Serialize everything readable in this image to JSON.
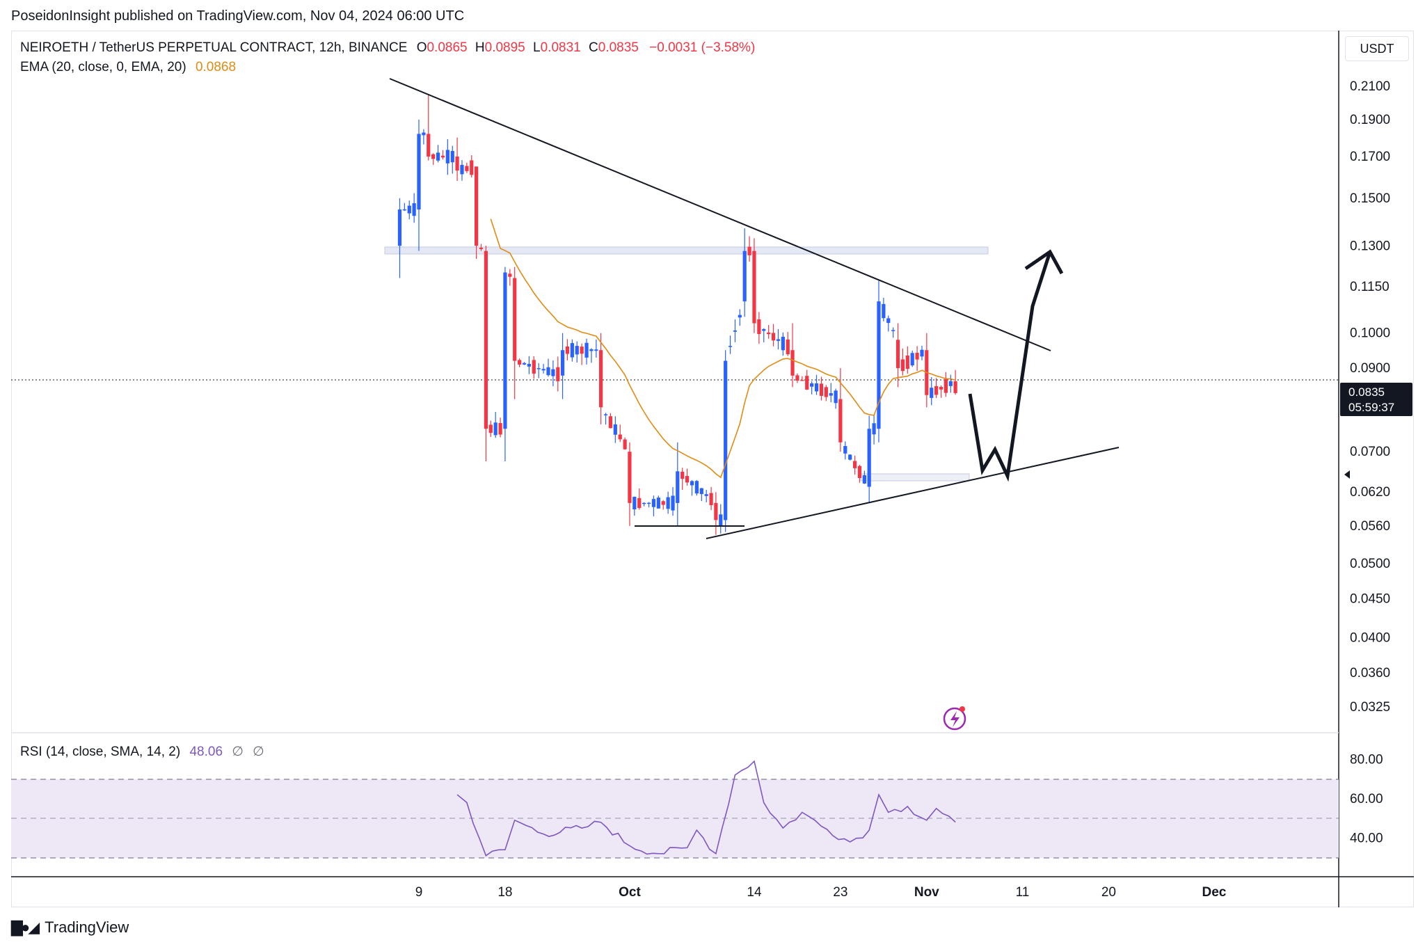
{
  "header": {
    "published": "PoseidonInsight published on TradingView.com, Nov 04, 2024 06:00 UTC"
  },
  "legend": {
    "symbol": "NEIROETH / TetherUS PERPETUAL CONTRACT, 12h, BINANCE",
    "o_label": "O",
    "o_value": "0.0865",
    "h_label": "H",
    "h_value": "0.0895",
    "l_label": "L",
    "l_value": "0.0831",
    "c_label": "C",
    "c_value": "0.0835",
    "change": "−0.0031 (−3.58%)",
    "ema_label": "EMA (20, close, 0, EMA, 20)",
    "ema_value": "0.0868"
  },
  "rsi_legend": {
    "label": "RSI (14, close, SMA, 14, 2)",
    "value": "48.06",
    "na1": "∅",
    "na2": "∅"
  },
  "price_scale": {
    "unit": "USDT",
    "current_price": "0.0835",
    "countdown": "05:59:37"
  },
  "branding": {
    "logo_text": "TradingView"
  },
  "colors": {
    "up": "#2962ff",
    "down": "#f23645",
    "ema": "#e08b13",
    "rsi": "#7e57c2",
    "rsi_band": "#ede7f6"
  },
  "chart_data": [
    {
      "type": "candlestick",
      "title": "NEIROETH / TetherUS PERPETUAL CONTRACT, 12h, BINANCE",
      "scale": "log",
      "y_ticks": [
        "0.2100",
        "0.1900",
        "0.1700",
        "0.1500",
        "0.1300",
        "0.1150",
        "0.1000",
        "0.0900",
        "0.0700",
        "0.0620",
        "0.0560",
        "0.0500",
        "0.0450",
        "0.0400",
        "0.0360",
        "0.0325"
      ],
      "x_ticks": [
        "9",
        "18",
        "Oct",
        "14",
        "23",
        "Nov",
        "11",
        "20",
        "Dec"
      ],
      "ylim": [
        0.03,
        0.225
      ],
      "ohlc_approx": [
        {
          "date": "2024-09-07",
          "open": 0.13,
          "high": 0.15,
          "low": 0.118,
          "close": 0.145
        },
        {
          "date": "2024-09-09",
          "open": 0.145,
          "high": 0.19,
          "low": 0.128,
          "close": 0.182
        },
        {
          "date": "2024-09-10",
          "open": 0.182,
          "high": 0.205,
          "low": 0.168,
          "close": 0.17
        },
        {
          "date": "2024-09-13",
          "open": 0.17,
          "high": 0.18,
          "low": 0.158,
          "close": 0.163
        },
        {
          "date": "2024-09-15",
          "open": 0.165,
          "high": 0.155,
          "low": 0.125,
          "close": 0.13
        },
        {
          "date": "2024-09-16",
          "open": 0.128,
          "high": 0.13,
          "low": 0.068,
          "close": 0.075
        },
        {
          "date": "2024-09-18",
          "open": 0.075,
          "high": 0.122,
          "low": 0.068,
          "close": 0.12
        },
        {
          "date": "2024-09-19",
          "open": 0.118,
          "high": 0.122,
          "low": 0.082,
          "close": 0.092
        },
        {
          "date": "2024-09-24",
          "open": 0.088,
          "high": 0.1,
          "low": 0.082,
          "close": 0.095
        },
        {
          "date": "2024-09-28",
          "open": 0.095,
          "high": 0.1,
          "low": 0.076,
          "close": 0.08
        },
        {
          "date": "2024-10-01",
          "open": 0.07,
          "high": 0.072,
          "low": 0.056,
          "close": 0.06
        },
        {
          "date": "2024-10-06",
          "open": 0.06,
          "high": 0.072,
          "low": 0.056,
          "close": 0.066
        },
        {
          "date": "2024-10-10",
          "open": 0.06,
          "high": 0.062,
          "low": 0.0545,
          "close": 0.057
        },
        {
          "date": "2024-10-11",
          "open": 0.057,
          "high": 0.095,
          "low": 0.055,
          "close": 0.092
        },
        {
          "date": "2024-10-13",
          "open": 0.11,
          "high": 0.137,
          "low": 0.105,
          "close": 0.128
        },
        {
          "date": "2024-10-14",
          "open": 0.128,
          "high": 0.133,
          "low": 0.1,
          "close": 0.103
        },
        {
          "date": "2024-10-18",
          "open": 0.095,
          "high": 0.103,
          "low": 0.085,
          "close": 0.088
        },
        {
          "date": "2024-10-23",
          "open": 0.082,
          "high": 0.09,
          "low": 0.07,
          "close": 0.072
        },
        {
          "date": "2024-10-26",
          "open": 0.063,
          "high": 0.078,
          "low": 0.06,
          "close": 0.075
        },
        {
          "date": "2024-10-27",
          "open": 0.075,
          "high": 0.117,
          "low": 0.072,
          "close": 0.11
        },
        {
          "date": "2024-10-29",
          "open": 0.098,
          "high": 0.103,
          "low": 0.085,
          "close": 0.09
        },
        {
          "date": "2024-11-01",
          "open": 0.095,
          "high": 0.1,
          "low": 0.08,
          "close": 0.083
        },
        {
          "date": "2024-11-04",
          "open": 0.0865,
          "high": 0.0895,
          "low": 0.0831,
          "close": 0.0835
        }
      ],
      "ema_20_last": 0.0868
    },
    {
      "type": "line",
      "title": "RSI (14, close, SMA, 14, 2)",
      "y_ticks": [
        "80.00",
        "60.00",
        "40.00"
      ],
      "bands": [
        30,
        50,
        70
      ],
      "points": [
        {
          "date": "2024-09-13",
          "value": 62
        },
        {
          "date": "2024-09-14",
          "value": 58
        },
        {
          "date": "2024-09-16",
          "value": 31
        },
        {
          "date": "2024-09-18",
          "value": 34
        },
        {
          "date": "2024-09-19",
          "value": 49
        },
        {
          "date": "2024-09-22",
          "value": 42
        },
        {
          "date": "2024-09-26",
          "value": 45
        },
        {
          "date": "2024-09-28",
          "value": 48
        },
        {
          "date": "2024-10-01",
          "value": 36
        },
        {
          "date": "2024-10-04",
          "value": 32
        },
        {
          "date": "2024-10-07",
          "value": 35
        },
        {
          "date": "2024-10-08",
          "value": 44
        },
        {
          "date": "2024-10-10",
          "value": 32
        },
        {
          "date": "2024-10-12",
          "value": 72
        },
        {
          "date": "2024-10-14",
          "value": 79
        },
        {
          "date": "2024-10-15",
          "value": 58
        },
        {
          "date": "2024-10-17",
          "value": 45
        },
        {
          "date": "2024-10-19",
          "value": 53
        },
        {
          "date": "2024-10-21",
          "value": 46
        },
        {
          "date": "2024-10-24",
          "value": 38
        },
        {
          "date": "2024-10-26",
          "value": 44
        },
        {
          "date": "2024-10-27",
          "value": 62
        },
        {
          "date": "2024-10-28",
          "value": 53
        },
        {
          "date": "2024-10-30",
          "value": 56
        },
        {
          "date": "2024-11-01",
          "value": 49
        },
        {
          "date": "2024-11-02",
          "value": 55
        },
        {
          "date": "2024-11-04",
          "value": 48.06
        }
      ]
    }
  ]
}
